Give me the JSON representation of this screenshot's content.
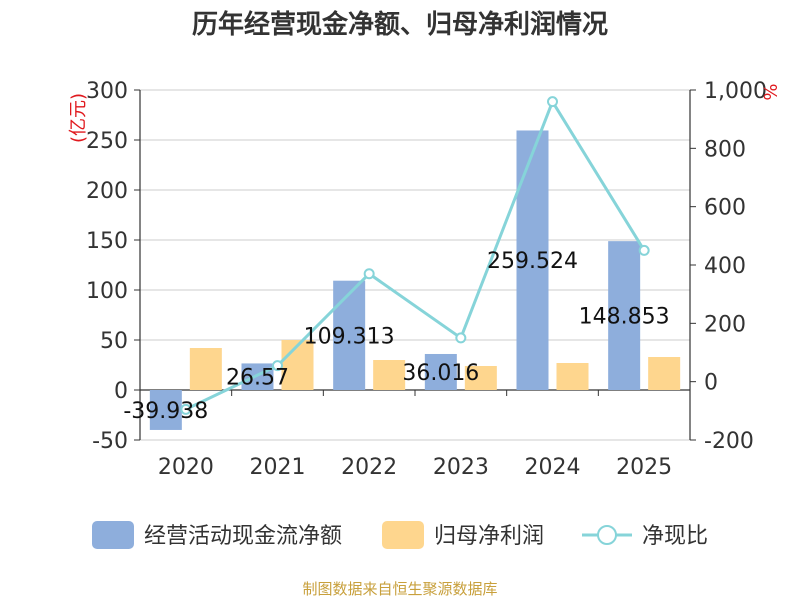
{
  "title": "历年经营现金净额、归母净利润情况",
  "left_unit": "(亿元)",
  "right_unit": "%",
  "source": "制图数据来自恒生聚源数据库",
  "colors": {
    "cash": "#8eaedc",
    "profit": "#fed68e",
    "ratio": "#86d4d9",
    "unit": "#e0191e",
    "source": "#c8a03c"
  },
  "chart_data": {
    "type": "bar",
    "title": "历年经营现金净额、归母净利润情况",
    "categories": [
      "2020",
      "2021",
      "2022",
      "2023",
      "2024",
      "2025"
    ],
    "series": [
      {
        "name": "经营活动现金流净额",
        "type": "bar",
        "axis": "left",
        "values": [
          -39.938,
          26.57,
          109.313,
          36.016,
          259.524,
          148.853
        ],
        "labels": [
          "-39.938",
          "26.57",
          "109.313",
          "36.016",
          "259.524",
          "148.853"
        ]
      },
      {
        "name": "归母净利润",
        "type": "bar",
        "axis": "left",
        "values": [
          42,
          50,
          30,
          24,
          27,
          33
        ]
      },
      {
        "name": "净现比",
        "type": "line",
        "axis": "right",
        "values": [
          -95,
          55,
          370,
          150,
          960,
          450
        ]
      }
    ],
    "left_axis": {
      "min": -50,
      "max": 300,
      "ticks": [
        "300",
        "250",
        "200",
        "150",
        "100",
        "50",
        "0",
        "-50"
      ],
      "tick_values": [
        300,
        250,
        200,
        150,
        100,
        50,
        0,
        -50
      ]
    },
    "right_axis": {
      "min": -200,
      "max": 1000,
      "ticks": [
        "1,000",
        "800",
        "600",
        "400",
        "200",
        "0",
        "-200"
      ],
      "tick_values": [
        1000,
        800,
        600,
        400,
        200,
        0,
        -200
      ]
    },
    "grid": true,
    "legend_position": "bottom"
  }
}
